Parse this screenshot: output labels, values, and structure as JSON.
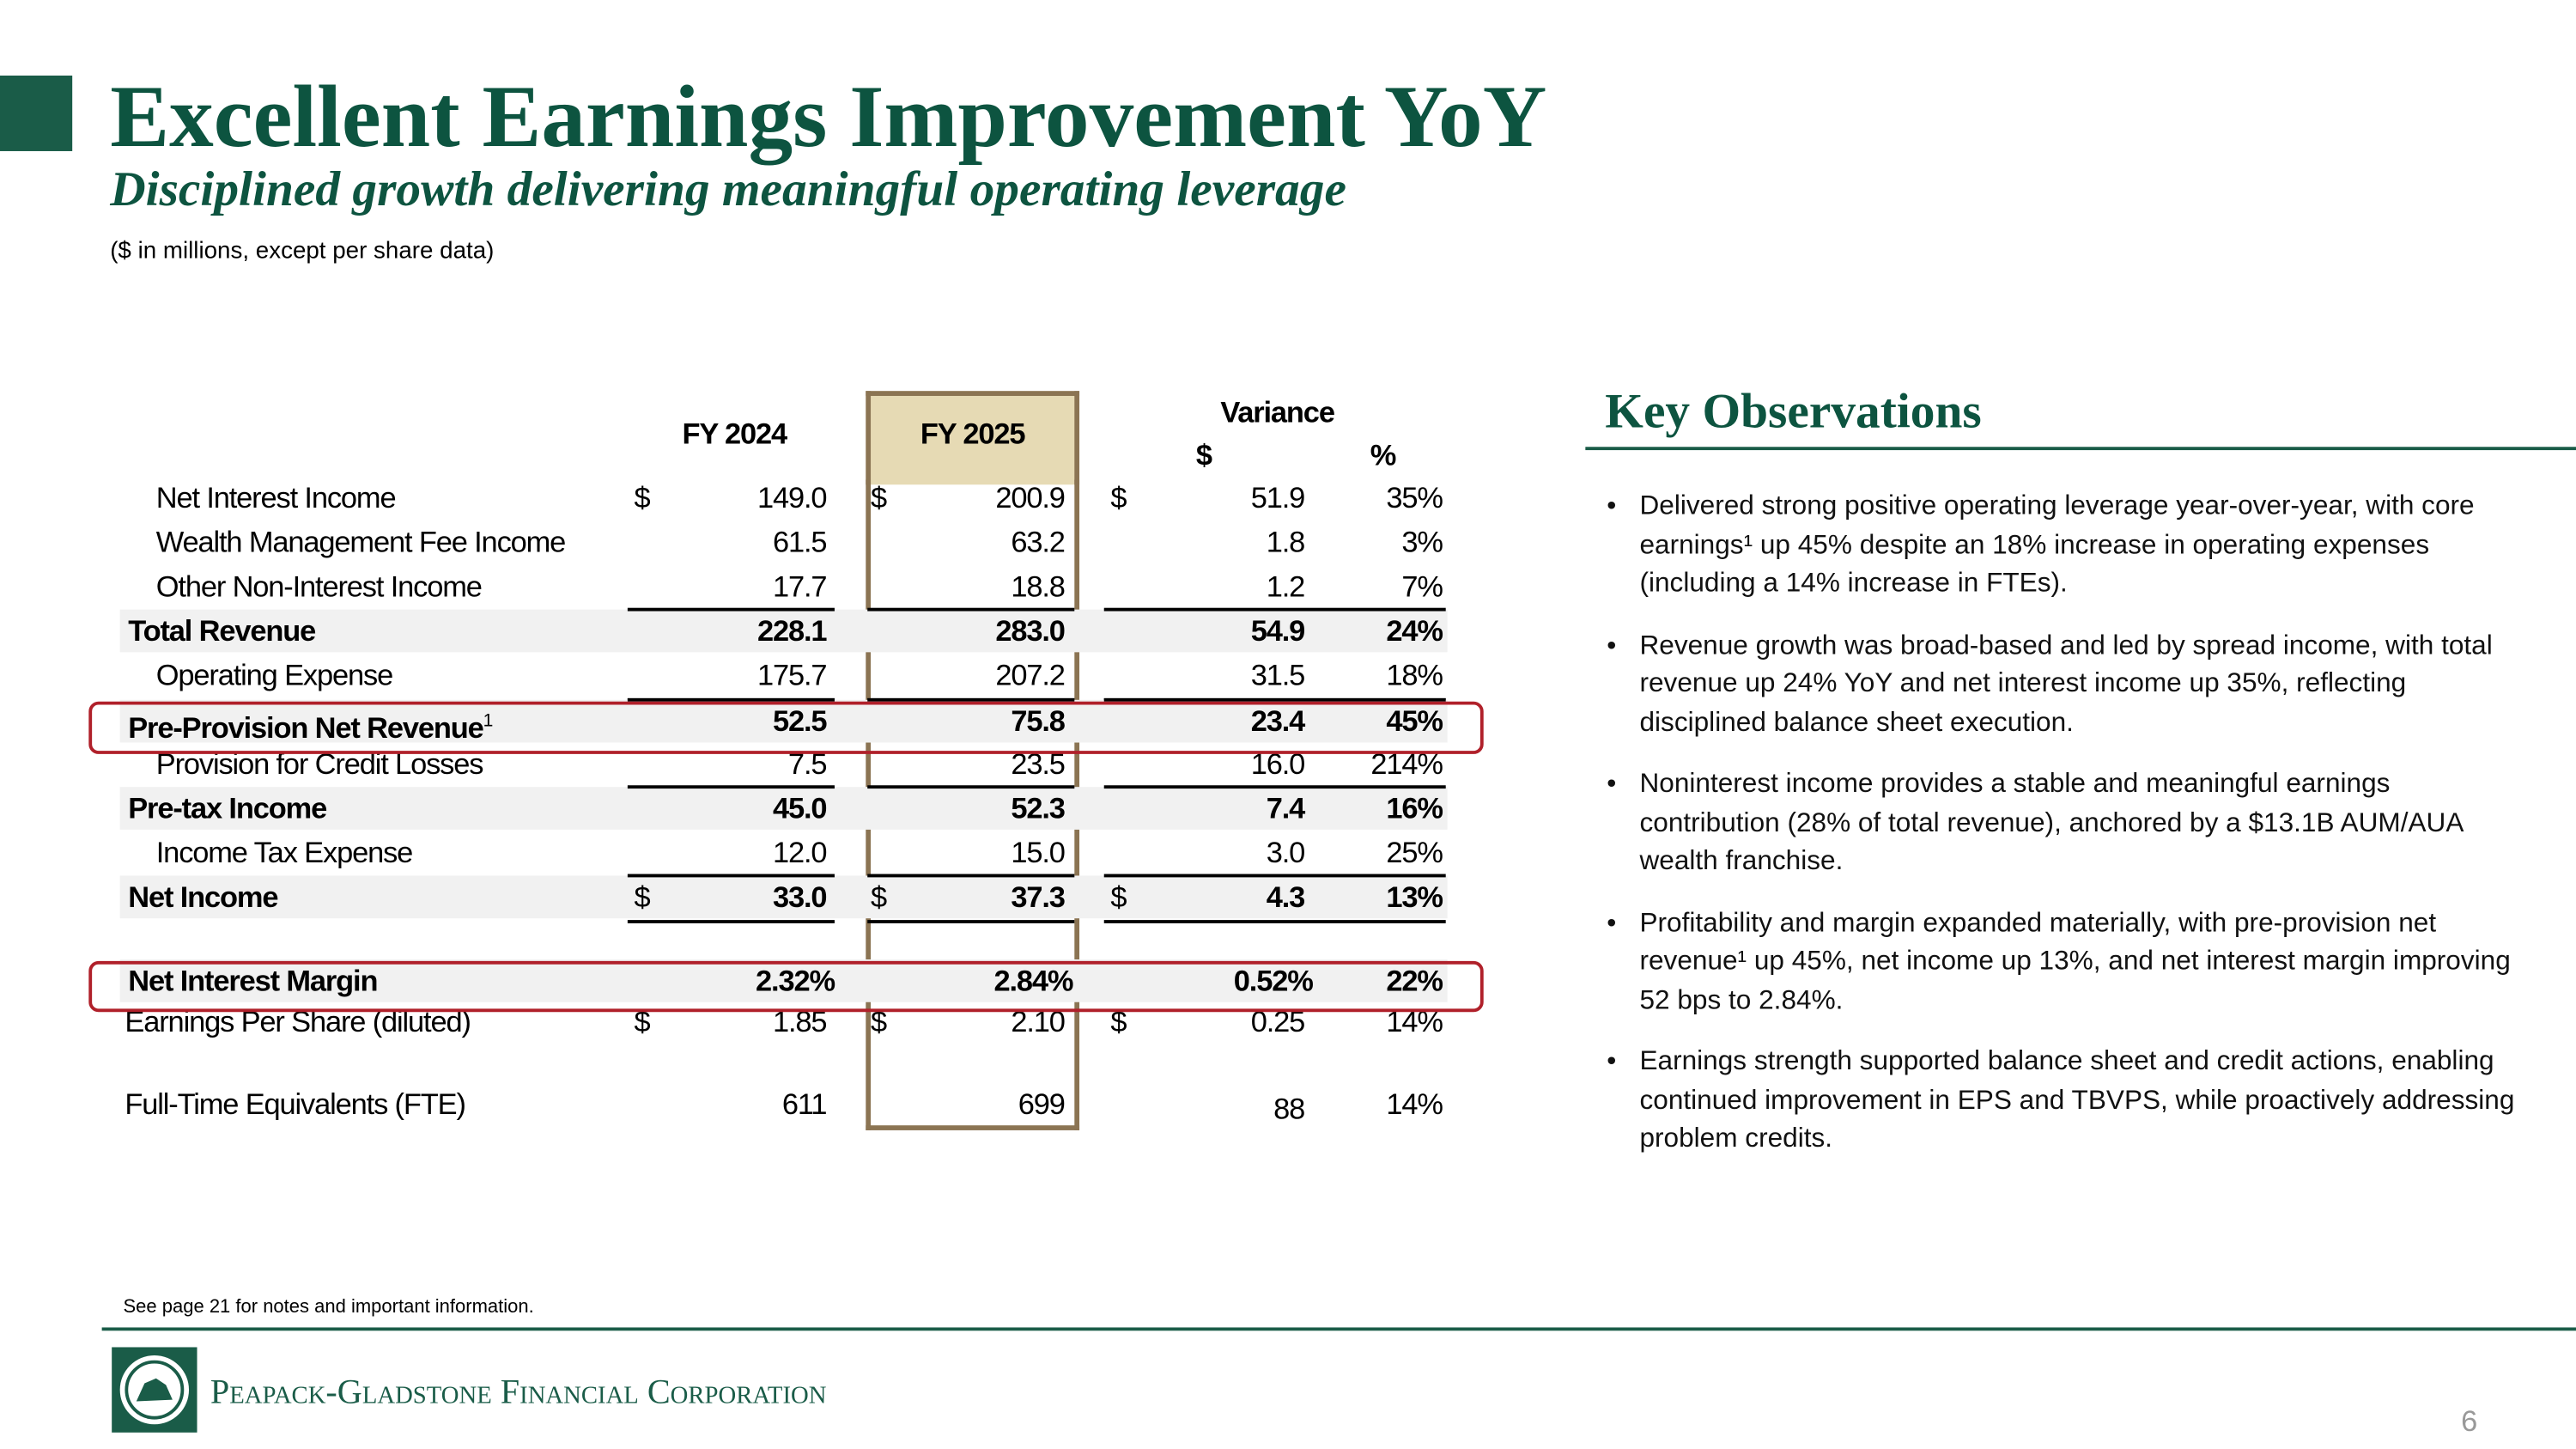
{
  "header": {
    "title": "Excellent Earnings Improvement YoY",
    "subtitle": "Disciplined growth delivering meaningful operating leverage",
    "note": "($ in millions, except per share data)"
  },
  "table": {
    "columns": {
      "fy2024": "FY 2024",
      "fy2025": "FY 2025",
      "variance": "Variance",
      "var_dollar": "$",
      "var_pct": "%"
    },
    "rows": [
      {
        "label": "Net Interest Income",
        "indent": true,
        "cur": "$",
        "fy2024": "149.0",
        "fy2025": "200.9",
        "var": "51.9",
        "pct": "35%"
      },
      {
        "label": "Wealth Management Fee Income",
        "indent": true,
        "fy2024": "61.5",
        "fy2025": "63.2",
        "var": "1.8",
        "pct": "3%"
      },
      {
        "label": "Other Non-Interest Income",
        "indent": true,
        "fy2024": "17.7",
        "fy2025": "18.8",
        "var": "1.2",
        "pct": "7%"
      },
      {
        "label": "Total Revenue",
        "bold": true,
        "fy2024": "228.1",
        "fy2025": "283.0",
        "var": "54.9",
        "pct": "24%"
      },
      {
        "label": "Operating Expense",
        "indent": true,
        "fy2024": "175.7",
        "fy2025": "207.2",
        "var": "31.5",
        "pct": "18%"
      },
      {
        "label": "Pre-Provision Net Revenue",
        "note": "1",
        "bold": true,
        "highlight": true,
        "fy2024": "52.5",
        "fy2025": "75.8",
        "var": "23.4",
        "pct": "45%"
      },
      {
        "label": "Provision for Credit Losses",
        "indent": true,
        "fy2024": "7.5",
        "fy2025": "23.5",
        "var": "16.0",
        "pct": "214%"
      },
      {
        "label": "Pre-tax Income",
        "bold": true,
        "fy2024": "45.0",
        "fy2025": "52.3",
        "var": "7.4",
        "pct": "16%"
      },
      {
        "label": "Income Tax Expense",
        "indent": true,
        "fy2024": "12.0",
        "fy2025": "15.0",
        "var": "3.0",
        "pct": "25%"
      },
      {
        "label": "Net Income",
        "bold": true,
        "cur": "$",
        "fy2024": "33.0",
        "fy2025": "37.3",
        "var": "4.3",
        "pct": "13%"
      },
      {
        "label": "Net Interest Margin",
        "bold": true,
        "highlight": true,
        "fy2024": "2.32%",
        "fy2025": "2.84%",
        "var": "0.52%",
        "pct": "22%"
      },
      {
        "label": "Earnings Per Share (diluted)",
        "cur": "$",
        "fy2024": "1.85",
        "fy2025": "2.10",
        "var": "0.25",
        "pct": "14%"
      },
      {
        "label": "Full-Time Equivalents (FTE)",
        "fy2024": "611",
        "fy2025": "699",
        "var": "88",
        "pct": "14%"
      }
    ]
  },
  "observations": {
    "title": "Key Observations",
    "bullets": [
      "Delivered strong positive operating leverage year-over-year, with core earnings¹ up 45% despite an 18% increase in operating expenses (including a 14% increase in FTEs).",
      "Revenue growth was broad-based and led by spread income, with total revenue up 24% YoY and net interest income up 35%, reflecting disciplined balance sheet execution.",
      "Noninterest income provides a stable and meaningful earnings contribution (28% of total revenue), anchored by a $13.1B AUM/AUA wealth franchise.",
      "Profitability and margin expanded materially, with pre-provision net revenue¹ up 45%, net income up 13%, and net interest margin improving 52 bps to 2.84%.",
      "Earnings strength supported balance sheet and credit actions, enabling continued improvement in EPS and TBVPS, while proactively addressing problem credits."
    ]
  },
  "footer": {
    "footnote": "See page 21 for notes and important information.",
    "company": "Peapack-Gladstone Financial Corporation",
    "page": "6"
  }
}
